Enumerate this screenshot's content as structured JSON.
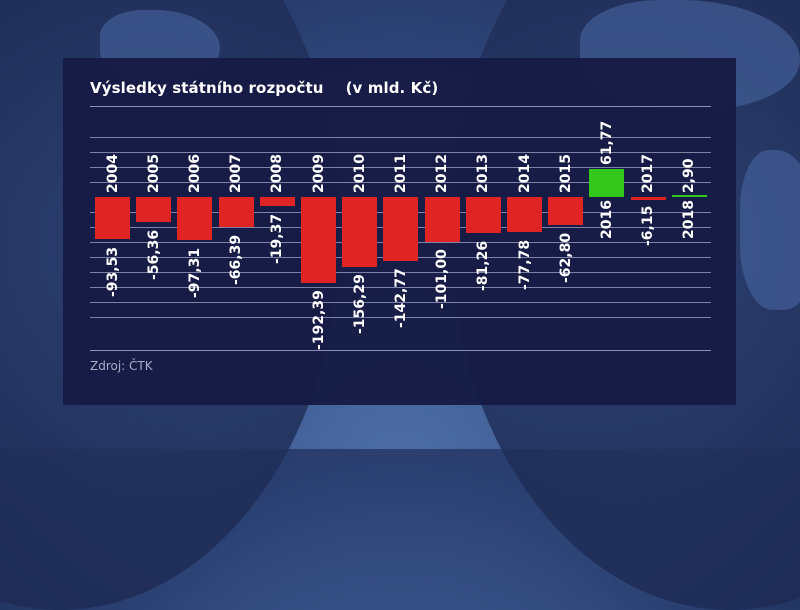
{
  "header": {
    "title": "Výsledky státního rozpočtu",
    "unit": "(v mld. Kč)"
  },
  "footer": {
    "source": "Zdroj: ČTK"
  },
  "colors": {
    "negative": "#e02323",
    "positive": "#35c81c",
    "panel": "#161b44",
    "gridline": "#7d82a6",
    "text": "#ffffff"
  },
  "chart_data": {
    "type": "bar",
    "title": "Výsledky státního rozpočtu (v mld. Kč)",
    "xlabel": "",
    "ylabel": "mld. Kč",
    "categories": [
      "2004",
      "2005",
      "2006",
      "2007",
      "2008",
      "2009",
      "2010",
      "2011",
      "2012",
      "2013",
      "2014",
      "2015",
      "2016",
      "2017",
      "2018"
    ],
    "values": [
      -93.53,
      -56.36,
      -97.31,
      -66.39,
      -19.37,
      -192.39,
      -156.29,
      -142.77,
      -101.0,
      -81.26,
      -77.78,
      -62.8,
      61.77,
      -6.15,
      2.9
    ],
    "value_labels": [
      "-93,53",
      "-56,36",
      "-97,31",
      "-66,39",
      "-19,37",
      "-192,39",
      "-156,29",
      "-142,77",
      "-101,00",
      "-81,26",
      "-77,78",
      "-62,80",
      "61,77",
      "-6,15",
      "2,90"
    ],
    "ylim": [
      -270,
      135
    ],
    "grid": true,
    "legend": "none",
    "source": "Zdroj: ČTK"
  }
}
